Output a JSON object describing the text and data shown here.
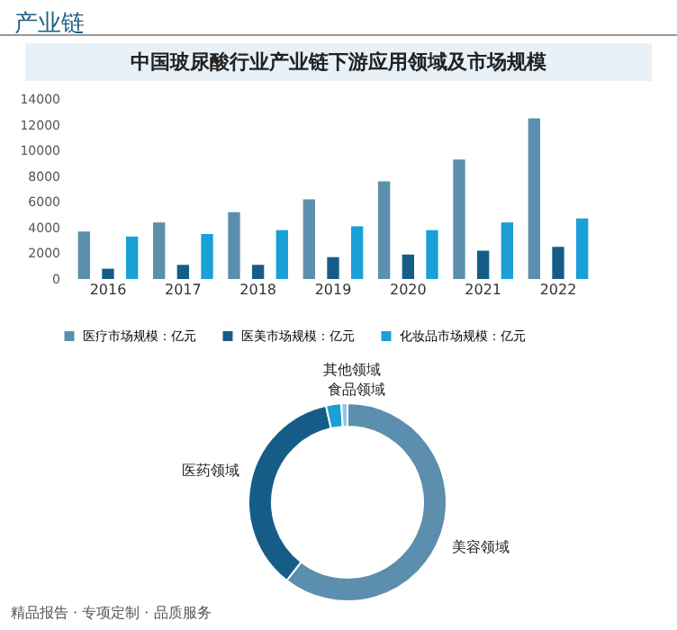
{
  "chart_data": [
    {
      "type": "bar",
      "title": "中国玻尿酸行业产业链下游应用领域及市场规模",
      "annotations": [
        "产业链",
        "精品报告 · 专项定制 · 品质服务"
      ],
      "categories": [
        "2016",
        "2017",
        "2018",
        "2019",
        "2020",
        "2021",
        "2022"
      ],
      "series": [
        {
          "name": "医疗市场规模：亿元",
          "color": "#5b8fad",
          "values": [
            3700,
            4400,
            5200,
            6200,
            7600,
            9300,
            12500
          ]
        },
        {
          "name": "医美市场规模：亿元",
          "color": "#155d87",
          "values": [
            800,
            1100,
            1100,
            1700,
            1900,
            2200,
            2500
          ]
        },
        {
          "name": "化妆品市场规模：亿元",
          "color": "#1a9fd6",
          "values": [
            3300,
            3500,
            3800,
            4100,
            3800,
            4400,
            4700
          ]
        }
      ],
      "ylim": [
        0,
        14000
      ],
      "yticks": [
        0,
        2000,
        4000,
        6000,
        8000,
        10000,
        12000,
        14000
      ],
      "grid": false,
      "legend": "bottom"
    },
    {
      "type": "donut",
      "categories": [
        "美容领域",
        "医药领域",
        "食品领域",
        "其他领域"
      ],
      "values": [
        60.5,
        36,
        2.5,
        1
      ],
      "colors": [
        "#5b8fad",
        "#155d87",
        "#1a9fd6",
        "#8fc6e6"
      ]
    }
  ]
}
